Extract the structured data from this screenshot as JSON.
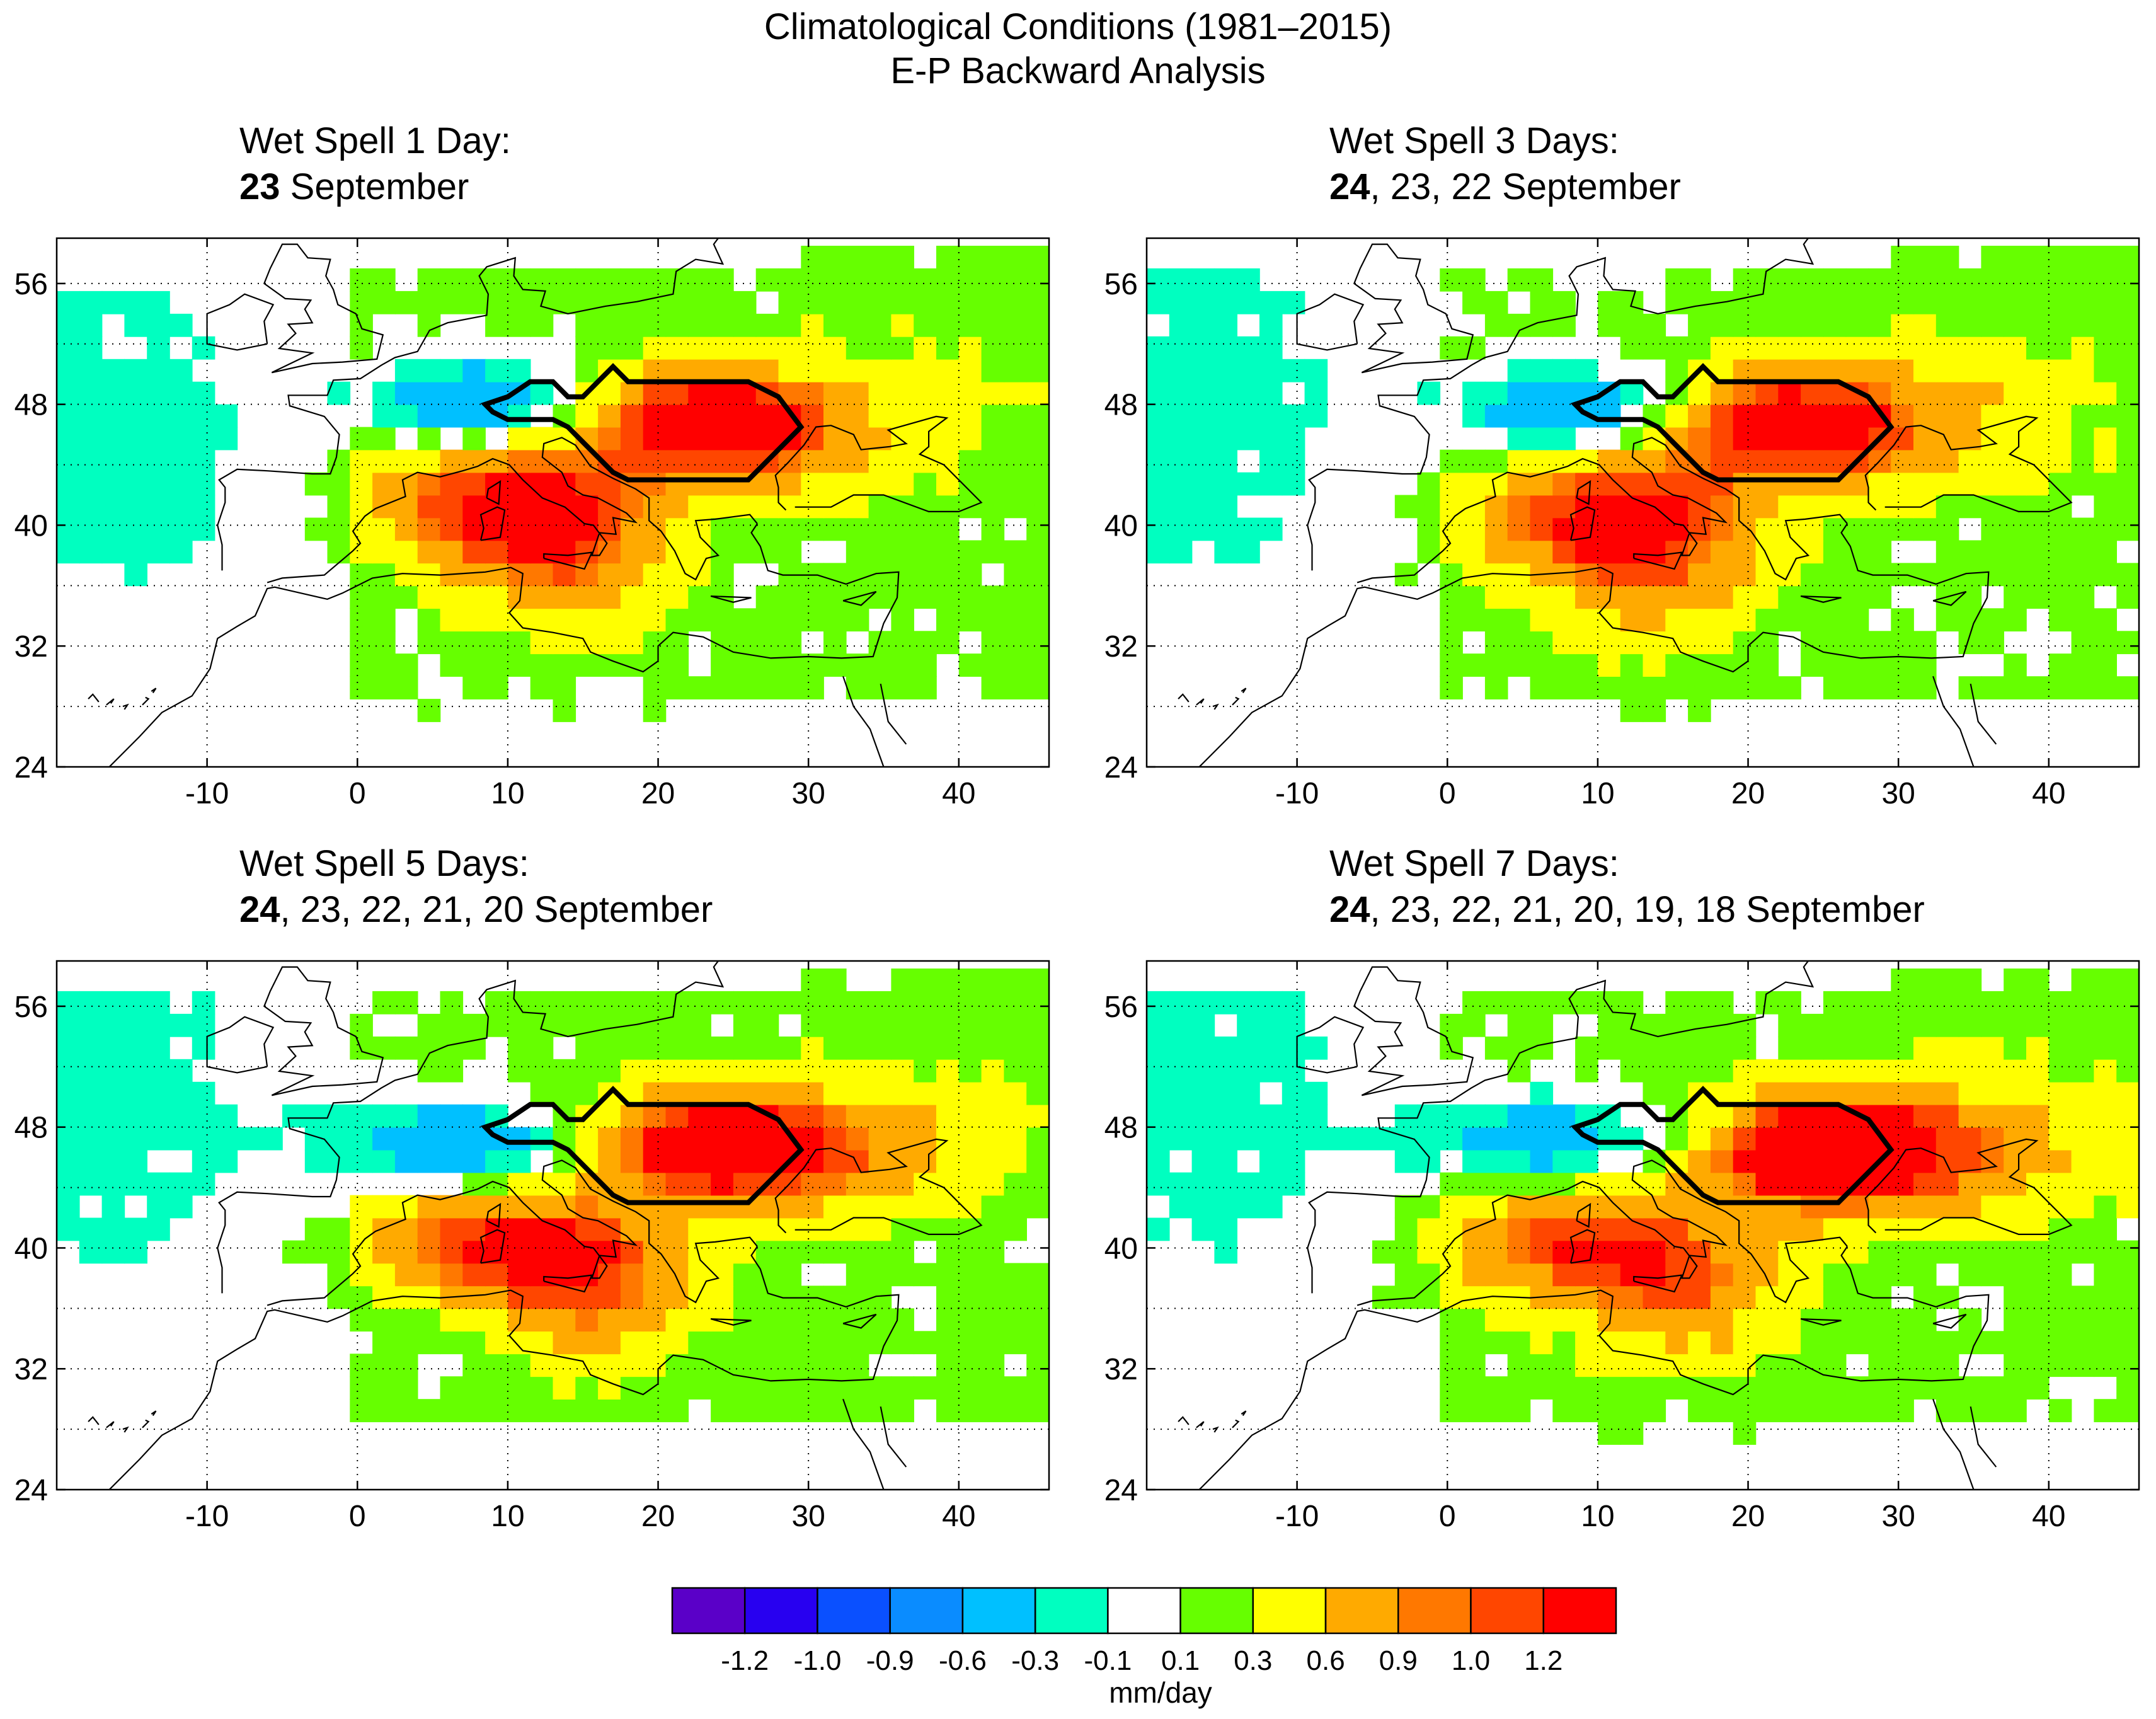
{
  "title": "Climatological Conditions (1981–2015)",
  "subtitle": "E-P Backward Analysis",
  "colorbar": {
    "unit": "mm/day",
    "colors": [
      "#5a00c8",
      "#2800f0",
      "#0a50ff",
      "#0a8cff",
      "#00c0ff",
      "#00ffc0",
      "#ffffff",
      "#66ff00",
      "#ffff00",
      "#ffaa00",
      "#ff7800",
      "#ff4600",
      "#ff0000"
    ],
    "labels": [
      "-1.2",
      "-1.0",
      "-0.9",
      "-0.6",
      "-0.3",
      "-0.1",
      "0.1",
      "0.3",
      "0.6",
      "0.9",
      "1.0",
      "1.2"
    ]
  },
  "chart_data": [
    {
      "type": "heatmap",
      "title_line1": "Wet Spell 1 Day:",
      "title_bold": "23",
      "title_rest": " September",
      "xlim": [
        -20,
        46
      ],
      "ylim": [
        24,
        59
      ],
      "xticks": [
        "-10",
        "0",
        "10",
        "20",
        "30",
        "40"
      ],
      "yticks": [
        "24",
        "32",
        "40",
        "48",
        "56"
      ],
      "xtick_values": [
        -10,
        0,
        10,
        20,
        30,
        40
      ],
      "ytick_values": [
        24,
        32,
        40,
        48,
        56
      ],
      "grid": "dotted",
      "units": "mm/day",
      "region_outline_lonlat": [
        [
          8.5,
          48
        ],
        [
          10,
          48.5
        ],
        [
          11.5,
          49.5
        ],
        [
          13,
          49.5
        ],
        [
          14,
          48.5
        ],
        [
          15,
          48.5
        ],
        [
          16,
          49.5
        ],
        [
          17,
          50.5
        ],
        [
          18,
          49.5
        ],
        [
          20,
          49.5
        ],
        [
          22,
          49.5
        ],
        [
          24,
          49.5
        ],
        [
          26,
          49.5
        ],
        [
          28,
          48.5
        ],
        [
          29.5,
          46.5
        ],
        [
          28,
          45
        ],
        [
          27,
          44
        ],
        [
          26,
          43
        ],
        [
          24,
          43
        ],
        [
          22,
          43
        ],
        [
          20,
          43
        ],
        [
          18,
          43
        ],
        [
          17,
          43.5
        ],
        [
          16,
          44.5
        ],
        [
          15,
          45.5
        ],
        [
          14,
          46.5
        ],
        [
          13,
          47
        ],
        [
          12,
          47
        ],
        [
          10,
          47
        ],
        [
          9,
          47.5
        ],
        [
          8.5,
          48
        ]
      ],
      "anomaly_centers": [
        {
          "lon": 23,
          "lat": 47,
          "sx": 5,
          "sy": 2.6,
          "amp": 1.15
        },
        {
          "lon": 9,
          "lat": 41.5,
          "sx": 6,
          "sy": 3,
          "amp": 1.05
        },
        {
          "lon": 14,
          "lat": 38,
          "sx": 5,
          "sy": 4,
          "amp": 0.7
        },
        {
          "lon": 30,
          "lat": 46,
          "sx": 8,
          "sy": 3,
          "amp": 0.55
        },
        {
          "lon": 8,
          "lat": 48,
          "sx": 4.5,
          "sy": 2,
          "amp": -0.9
        },
        {
          "lon": -16,
          "lat": 45,
          "sx": 7,
          "sy": 10,
          "amp": -0.18
        }
      ]
    },
    {
      "type": "heatmap",
      "title_line1": "Wet Spell 3 Days:",
      "title_bold": "24",
      "title_rest": ", 23, 22 September",
      "xlim": [
        -20,
        46
      ],
      "ylim": [
        24,
        59
      ],
      "xticks": [
        "-10",
        "0",
        "10",
        "20",
        "30",
        "40"
      ],
      "yticks": [
        "24",
        "32",
        "40",
        "48",
        "56"
      ],
      "xtick_values": [
        -10,
        0,
        10,
        20,
        30,
        40
      ],
      "ytick_values": [
        24,
        32,
        40,
        48,
        56
      ],
      "grid": "dotted",
      "units": "mm/day",
      "region_outline_lonlat": [
        [
          8.5,
          48
        ],
        [
          10,
          48.5
        ],
        [
          11.5,
          49.5
        ],
        [
          13,
          49.5
        ],
        [
          14,
          48.5
        ],
        [
          15,
          48.5
        ],
        [
          16,
          49.5
        ],
        [
          17,
          50.5
        ],
        [
          18,
          49.5
        ],
        [
          20,
          49.5
        ],
        [
          22,
          49.5
        ],
        [
          24,
          49.5
        ],
        [
          26,
          49.5
        ],
        [
          28,
          48.5
        ],
        [
          29.5,
          46.5
        ],
        [
          28,
          45
        ],
        [
          27,
          44
        ],
        [
          26,
          43
        ],
        [
          24,
          43
        ],
        [
          22,
          43
        ],
        [
          20,
          43
        ],
        [
          18,
          43
        ],
        [
          17,
          43.5
        ],
        [
          16,
          44.5
        ],
        [
          15,
          45.5
        ],
        [
          14,
          46.5
        ],
        [
          13,
          47
        ],
        [
          12,
          47
        ],
        [
          10,
          47
        ],
        [
          9,
          47.5
        ],
        [
          8.5,
          48
        ]
      ],
      "anomaly_centers": [
        {
          "lon": 22.5,
          "lat": 47,
          "sx": 5.5,
          "sy": 2.8,
          "amp": 1.05
        },
        {
          "lon": 10,
          "lat": 41,
          "sx": 6.5,
          "sy": 3.2,
          "amp": 0.98
        },
        {
          "lon": 14,
          "lat": 37,
          "sx": 5,
          "sy": 4,
          "amp": 0.62
        },
        {
          "lon": 31,
          "lat": 46,
          "sx": 8,
          "sy": 3,
          "amp": 0.55
        },
        {
          "lon": 8,
          "lat": 47.5,
          "sx": 5,
          "sy": 2.2,
          "amp": -0.85
        },
        {
          "lon": -16,
          "lat": 48,
          "sx": 7,
          "sy": 10,
          "amp": -0.18
        }
      ]
    },
    {
      "type": "heatmap",
      "title_line1": "Wet Spell 5 Days:",
      "title_bold": "24",
      "title_rest": ", 23, 22, 21, 20 September",
      "xlim": [
        -20,
        46
      ],
      "ylim": [
        24,
        59
      ],
      "xticks": [
        "-10",
        "0",
        "10",
        "20",
        "30",
        "40"
      ],
      "yticks": [
        "24",
        "32",
        "40",
        "48",
        "56"
      ],
      "xtick_values": [
        -10,
        0,
        10,
        20,
        30,
        40
      ],
      "ytick_values": [
        24,
        32,
        40,
        48,
        56
      ],
      "grid": "dotted",
      "units": "mm/day",
      "region_outline_lonlat": [
        [
          8.5,
          48
        ],
        [
          10,
          48.5
        ],
        [
          11.5,
          49.5
        ],
        [
          13,
          49.5
        ],
        [
          14,
          48.5
        ],
        [
          15,
          48.5
        ],
        [
          16,
          49.5
        ],
        [
          17,
          50.5
        ],
        [
          18,
          49.5
        ],
        [
          20,
          49.5
        ],
        [
          22,
          49.5
        ],
        [
          24,
          49.5
        ],
        [
          26,
          49.5
        ],
        [
          28,
          48.5
        ],
        [
          29.5,
          46.5
        ],
        [
          28,
          45
        ],
        [
          27,
          44
        ],
        [
          26,
          43
        ],
        [
          24,
          43
        ],
        [
          22,
          43
        ],
        [
          20,
          43
        ],
        [
          18,
          43
        ],
        [
          17,
          43.5
        ],
        [
          16,
          44.5
        ],
        [
          15,
          45.5
        ],
        [
          14,
          46.5
        ],
        [
          13,
          47
        ],
        [
          12,
          47
        ],
        [
          10,
          47
        ],
        [
          9,
          47.5
        ],
        [
          8.5,
          48
        ]
      ],
      "anomaly_centers": [
        {
          "lon": 23,
          "lat": 47,
          "sx": 5.5,
          "sy": 2.6,
          "amp": 1.12
        },
        {
          "lon": 9,
          "lat": 40.5,
          "sx": 6.5,
          "sy": 2.8,
          "amp": 1.05
        },
        {
          "lon": 16,
          "lat": 37,
          "sx": 5,
          "sy": 3.5,
          "amp": 0.72
        },
        {
          "lon": 32,
          "lat": 46,
          "sx": 8,
          "sy": 3,
          "amp": 0.7
        },
        {
          "lon": 7,
          "lat": 46.5,
          "sx": 5.5,
          "sy": 2.2,
          "amp": -0.8
        },
        {
          "lon": -16,
          "lat": 50,
          "sx": 7,
          "sy": 10,
          "amp": -0.18
        }
      ]
    },
    {
      "type": "heatmap",
      "title_line1": "Wet Spell 7 Days:",
      "title_bold": "24",
      "title_rest": ", 23, 22, 21, 20, 19, 18 September",
      "xlim": [
        -20,
        46
      ],
      "ylim": [
        24,
        59
      ],
      "xticks": [
        "-10",
        "0",
        "10",
        "20",
        "30",
        "40"
      ],
      "yticks": [
        "24",
        "32",
        "40",
        "48",
        "56"
      ],
      "xtick_values": [
        -10,
        0,
        10,
        20,
        30,
        40
      ],
      "ytick_values": [
        24,
        32,
        40,
        48,
        56
      ],
      "grid": "dotted",
      "units": "mm/day",
      "region_outline_lonlat": [
        [
          8.5,
          48
        ],
        [
          10,
          48.5
        ],
        [
          11.5,
          49.5
        ],
        [
          13,
          49.5
        ],
        [
          14,
          48.5
        ],
        [
          15,
          48.5
        ],
        [
          16,
          49.5
        ],
        [
          17,
          50.5
        ],
        [
          18,
          49.5
        ],
        [
          20,
          49.5
        ],
        [
          22,
          49.5
        ],
        [
          24,
          49.5
        ],
        [
          26,
          49.5
        ],
        [
          28,
          48.5
        ],
        [
          29.5,
          46.5
        ],
        [
          28,
          45
        ],
        [
          27,
          44
        ],
        [
          26,
          43
        ],
        [
          24,
          43
        ],
        [
          22,
          43
        ],
        [
          20,
          43
        ],
        [
          18,
          43
        ],
        [
          17,
          43.5
        ],
        [
          16,
          44.5
        ],
        [
          15,
          45.5
        ],
        [
          14,
          46.5
        ],
        [
          13,
          47
        ],
        [
          12,
          47
        ],
        [
          10,
          47
        ],
        [
          9,
          47.5
        ],
        [
          8.5,
          48
        ]
      ],
      "anomaly_centers": [
        {
          "lon": 24.5,
          "lat": 46.5,
          "sx": 5.5,
          "sy": 2.8,
          "amp": 1.25
        },
        {
          "lon": 8,
          "lat": 40.5,
          "sx": 6.5,
          "sy": 3,
          "amp": 0.95
        },
        {
          "lon": 16,
          "lat": 37,
          "sx": 5,
          "sy": 3.5,
          "amp": 0.7
        },
        {
          "lon": 33,
          "lat": 46,
          "sx": 8,
          "sy": 3,
          "amp": 0.75
        },
        {
          "lon": 7,
          "lat": 47,
          "sx": 5.5,
          "sy": 2.2,
          "amp": -0.75
        },
        {
          "lon": -16,
          "lat": 50,
          "sx": 7,
          "sy": 10,
          "amp": -0.18
        }
      ]
    }
  ]
}
